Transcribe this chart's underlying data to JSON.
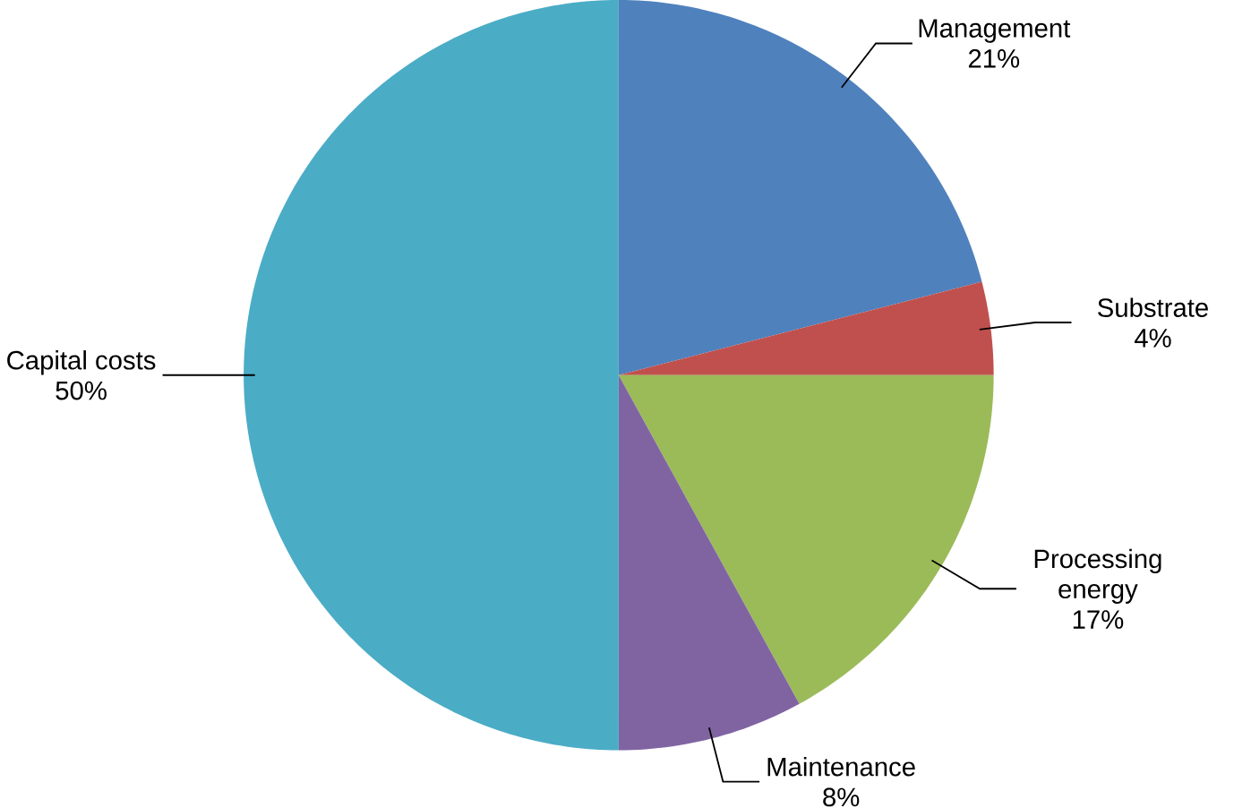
{
  "chart_data": {
    "type": "pie",
    "categories": [
      "Management",
      "Substrate",
      "Processing energy",
      "Maintenance",
      "Capital costs"
    ],
    "values": [
      21,
      4,
      17,
      8,
      50
    ],
    "value_labels": [
      "21%",
      "4%",
      "17%",
      "8%",
      "50%"
    ],
    "colors": [
      "#4f81bd",
      "#c0504d",
      "#9bbb59",
      "#8064a2",
      "#4bacc6"
    ]
  }
}
